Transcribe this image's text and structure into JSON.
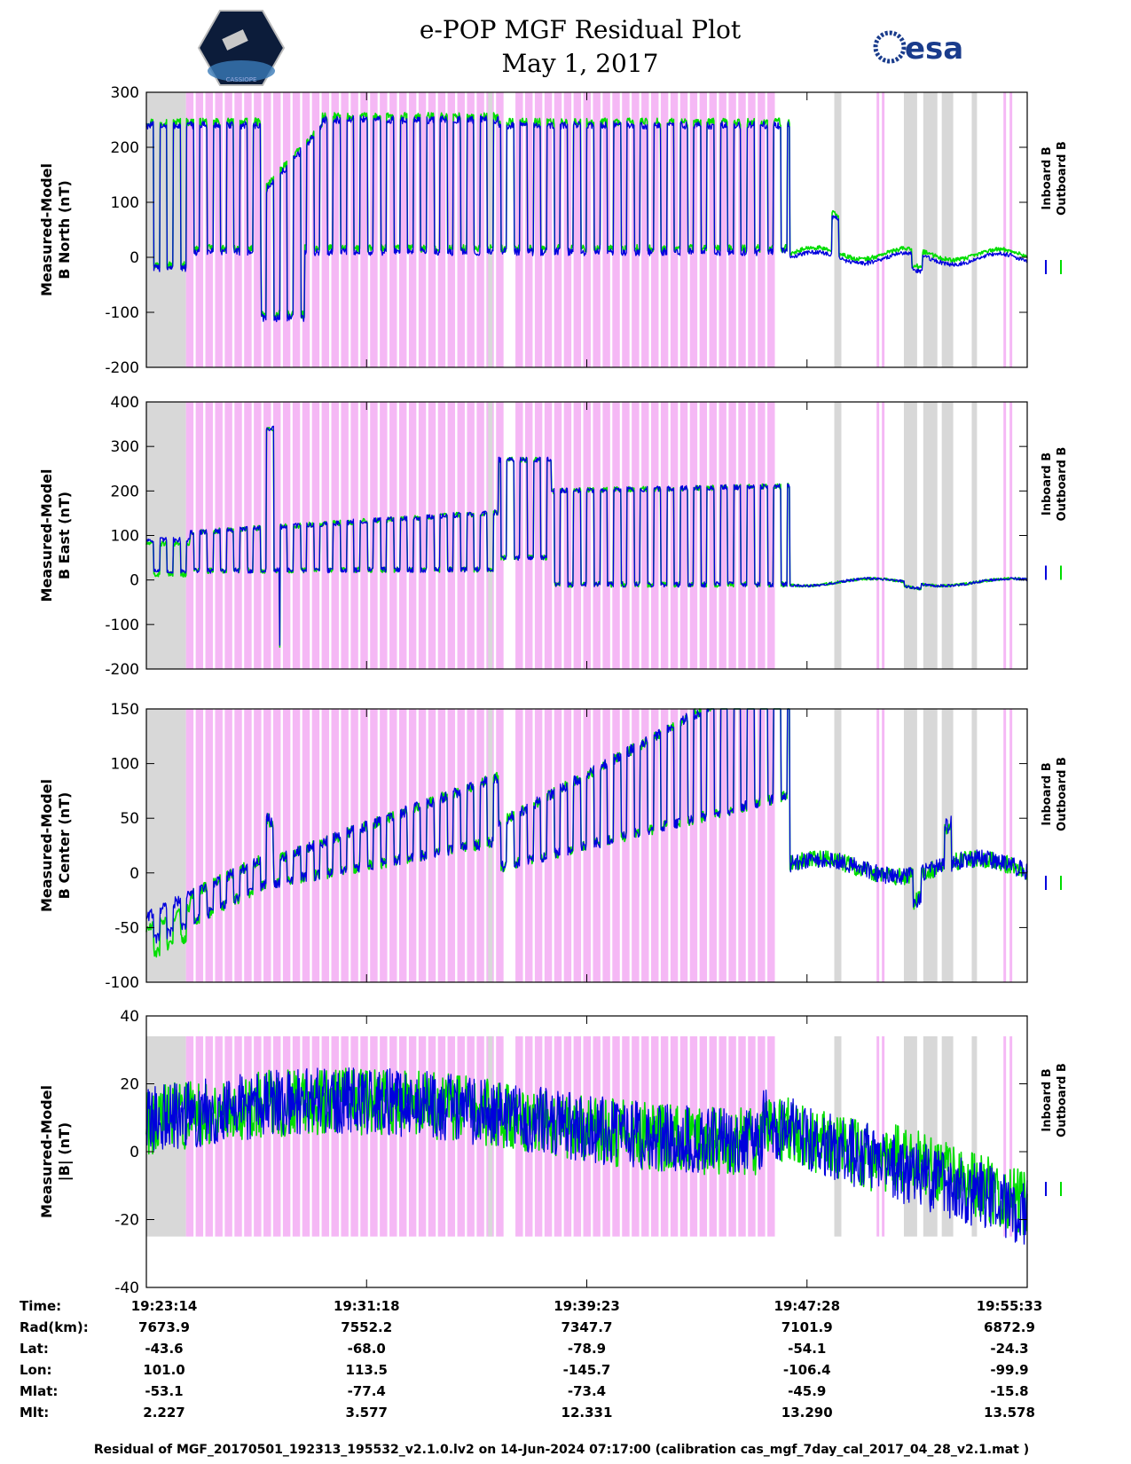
{
  "title": "e-POP MGF Residual Plot",
  "subtitle": "May 1, 2017",
  "logo_right_text": "esa",
  "logo_left_text": "CASSIOPE",
  "colors": {
    "inboard": "#0000dd",
    "outboard": "#00dd00",
    "magenta_band": "#f5b8f5",
    "gray_band": "#d8d8d8"
  },
  "legend": {
    "inboard": "Inboard B",
    "outboard": "Outboard B"
  },
  "chart_data": [
    {
      "type": "line",
      "ylabel_line1": "Measured-Model",
      "ylabel_line2": "B North (nT)",
      "ylim": [
        -200,
        300
      ],
      "yticks": [
        300,
        200,
        100,
        0,
        -100,
        -200
      ],
      "series": [
        {
          "name": "Inboard B"
        },
        {
          "name": "Outboard B"
        }
      ]
    },
    {
      "type": "line",
      "ylabel_line1": "Measured-Model",
      "ylabel_line2": "B East (nT)",
      "ylim": [
        -200,
        400
      ],
      "yticks": [
        400,
        300,
        200,
        100,
        0,
        -100,
        -200
      ],
      "series": [
        {
          "name": "Inboard B"
        },
        {
          "name": "Outboard B"
        }
      ]
    },
    {
      "type": "line",
      "ylabel_line1": "Measured-Model",
      "ylabel_line2": "B Center (nT)",
      "ylim": [
        -100,
        150
      ],
      "yticks": [
        150,
        100,
        50,
        0,
        -50,
        -100
      ],
      "series": [
        {
          "name": "Inboard B"
        },
        {
          "name": "Outboard B"
        }
      ]
    },
    {
      "type": "line",
      "ylabel_line1": "Measured-Model",
      "ylabel_line2": "|B| (nT)",
      "ylim": [
        -40,
        40
      ],
      "yticks": [
        40,
        20,
        0,
        -20,
        -40
      ],
      "series": [
        {
          "name": "Inboard B"
        },
        {
          "name": "Outboard B"
        }
      ]
    }
  ],
  "table": {
    "rows": [
      {
        "label": "Time:",
        "values": [
          "19:23:14",
          "19:31:18",
          "19:39:23",
          "19:47:28",
          "19:55:33"
        ]
      },
      {
        "label": "Rad(km):",
        "values": [
          "7673.9",
          "7552.2",
          "7347.7",
          "7101.9",
          "6872.9"
        ]
      },
      {
        "label": "Lat:",
        "values": [
          "-43.6",
          "-68.0",
          "-78.9",
          "-54.1",
          "-24.3"
        ]
      },
      {
        "label": "Lon:",
        "values": [
          "101.0",
          "113.5",
          "-145.7",
          "-106.4",
          "-99.9"
        ]
      },
      {
        "label": "Mlat:",
        "values": [
          "-53.1",
          "-77.4",
          "-73.4",
          "-45.9",
          "-15.8"
        ]
      },
      {
        "label": "Mlt:",
        "values": [
          "2.227",
          "3.577",
          "12.331",
          "13.290",
          "13.578"
        ]
      }
    ]
  },
  "footer": "Residual of MGF_20170501_192313_195532_v2.1.0.lv2 on 14-Jun-2024 07:17:00 (calibration cas_mgf_7day_cal_2017_04_28_v2.1.mat )"
}
